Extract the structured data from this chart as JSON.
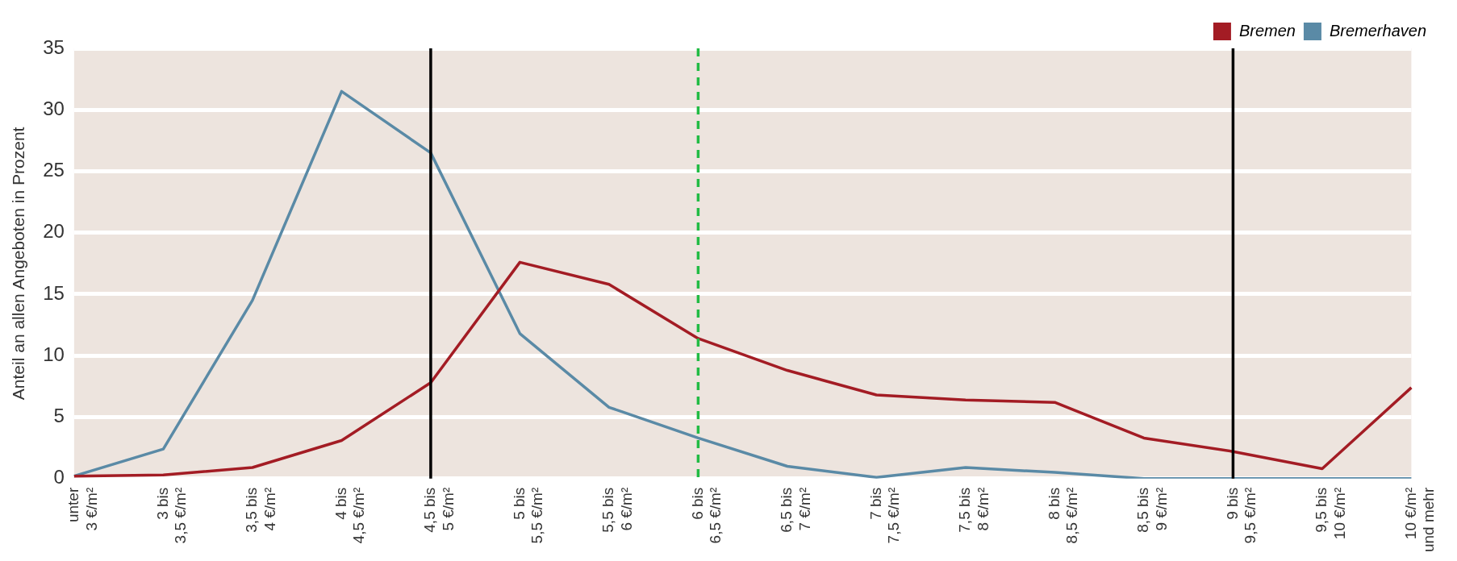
{
  "chart_data": {
    "type": "line",
    "ylabel": "Anteil an allen Angeboten in Prozent",
    "categories": [
      "unter\n3 €/m²",
      "3 bis\n3,5 €/m²",
      "3,5 bis\n4 €/m²",
      "4 bis\n4,5 €/m²",
      "4,5 bis\n5 €/m²",
      "5 bis\n5,5 €/m²",
      "5,5 bis\n6 €/m²",
      "6 bis\n6,5 €/m²",
      "6,5 bis\n7 €/m²",
      "7 bis\n7,5 €/m²",
      "7,5 bis\n8 €/m²",
      "8 bis\n8,5 €/m²",
      "8,5 bis\n9 €/m²",
      "9 bis\n9,5 €/m²",
      "9,5 bis\n10 €/m²",
      "10 €/m²\nund mehr"
    ],
    "series": [
      {
        "name": "Bremen",
        "color": "#a31c24",
        "values": [
          0.2,
          0.3,
          0.9,
          3.1,
          7.8,
          17.6,
          15.8,
          11.4,
          8.8,
          6.8,
          6.4,
          6.2,
          3.3,
          2.2,
          0.8,
          7.4
        ]
      },
      {
        "name": "Bremerhaven",
        "color": "#5a8aa6",
        "values": [
          0.2,
          2.4,
          14.5,
          31.5,
          26.5,
          11.8,
          5.8,
          3.3,
          1.0,
          0.1,
          0.9,
          0.5,
          0.0,
          0.0,
          0.0,
          0.0
        ]
      }
    ],
    "ylim": [
      0,
      35
    ],
    "yticks": [
      0,
      5,
      10,
      15,
      20,
      25,
      30,
      35
    ],
    "grid": "y",
    "legend": "top right",
    "marker": "none",
    "line_style": "solid",
    "ref_lines": [
      {
        "axis": "x",
        "value": "4,5 bis\n5 €/m²",
        "color": "#000000",
        "line_style": "solid"
      },
      {
        "axis": "x",
        "value": "6 bis\n6,5 €/m²",
        "color": "#22bb44",
        "line_style": "dashed"
      },
      {
        "axis": "x",
        "value": "9 bis\n9,5 €/m²",
        "color": "#000000",
        "line_style": "solid"
      }
    ]
  }
}
